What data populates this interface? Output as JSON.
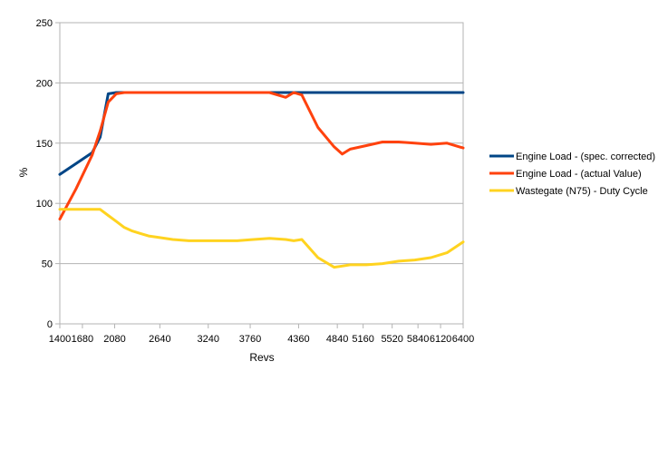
{
  "chart_data": {
    "type": "line",
    "xlabel": "Revs",
    "ylabel": "%",
    "ylim": [
      0,
      250
    ],
    "yticks": [
      0,
      50,
      100,
      150,
      200,
      250
    ],
    "xlim": [
      1400,
      6400
    ],
    "xticks": [
      1400,
      1680,
      2080,
      2640,
      3240,
      3760,
      4360,
      4840,
      5160,
      5520,
      5840,
      6120,
      6400
    ],
    "grid": "horizontal",
    "legend_position": "right",
    "x": [
      1400,
      1600,
      1800,
      1900,
      2000,
      2100,
      2200,
      2300,
      2400,
      2500,
      2600,
      2800,
      3000,
      3200,
      3400,
      3600,
      3800,
      4000,
      4200,
      4300,
      4400,
      4600,
      4800,
      4900,
      5000,
      5200,
      5400,
      5600,
      5800,
      6000,
      6200,
      6400
    ],
    "series": [
      {
        "name": "Engine Load - (spec. corrected)",
        "color": "#004586",
        "values": [
          124,
          133,
          142,
          155,
          191,
          192,
          192,
          192,
          192,
          192,
          192,
          192,
          192,
          192,
          192,
          192,
          192,
          192,
          192,
          192,
          192,
          192,
          192,
          192,
          192,
          192,
          192,
          192,
          192,
          192,
          192,
          192
        ]
      },
      {
        "name": "Engine Load - (actual Value)",
        "color": "#ff420e",
        "values": [
          87,
          112,
          140,
          160,
          184,
          191,
          192,
          192,
          192,
          192,
          192,
          192,
          192,
          192,
          192,
          192,
          192,
          192,
          188,
          192,
          190,
          163,
          147,
          141,
          145,
          148,
          151,
          151,
          150,
          149,
          150,
          146
        ]
      },
      {
        "name": "Wastegate (N75) - Duty Cycle",
        "color": "#ffd320",
        "values": [
          95,
          95,
          95,
          95,
          90,
          85,
          80,
          77,
          75,
          73,
          72,
          70,
          69,
          69,
          69,
          69,
          70,
          71,
          70,
          69,
          70,
          55,
          47,
          48,
          49,
          49,
          50,
          52,
          53,
          55,
          59,
          68
        ]
      }
    ]
  }
}
